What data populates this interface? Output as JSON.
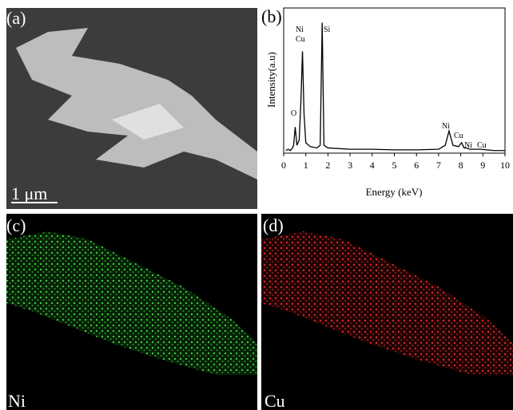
{
  "panels": {
    "a": "(a)",
    "b": "(b)",
    "c": "(c)",
    "d": "(d)"
  },
  "scale_bar": "1 μm",
  "map_labels": [
    "Ni",
    "Cu"
  ],
  "chart_data": {
    "type": "line",
    "xlabel": "Energy (keV)",
    "ylabel": "Intensity(a.u)",
    "annotations": [
      "O",
      "Ni",
      "Cu",
      "Si",
      "Ni",
      "Cu",
      "Ni",
      "Cu"
    ],
    "x": [
      0.1,
      0.2,
      0.3,
      0.4,
      0.45,
      0.52,
      0.6,
      0.7,
      0.78,
      0.85,
      0.92,
      1.0,
      1.2,
      1.5,
      1.65,
      1.74,
      1.82,
      2.0,
      3,
      4,
      5,
      6,
      7,
      7.3,
      7.47,
      7.65,
      7.9,
      8.04,
      8.15,
      8.26,
      8.4,
      8.9,
      9.5,
      10
    ],
    "values": [
      2,
      3,
      2,
      4,
      6,
      20,
      6,
      10,
      40,
      78,
      30,
      8,
      5,
      4,
      6,
      100,
      6,
      4,
      3,
      3,
      2.5,
      2.5,
      3,
      6,
      17,
      6,
      5,
      8,
      4,
      4,
      3,
      3,
      2,
      2
    ],
    "color": "#000000",
    "xlim": [
      0,
      10
    ],
    "xticks": [
      0,
      1,
      2,
      3,
      4,
      5,
      6,
      7,
      8,
      9,
      10
    ],
    "ylim": [
      0,
      110
    ]
  }
}
